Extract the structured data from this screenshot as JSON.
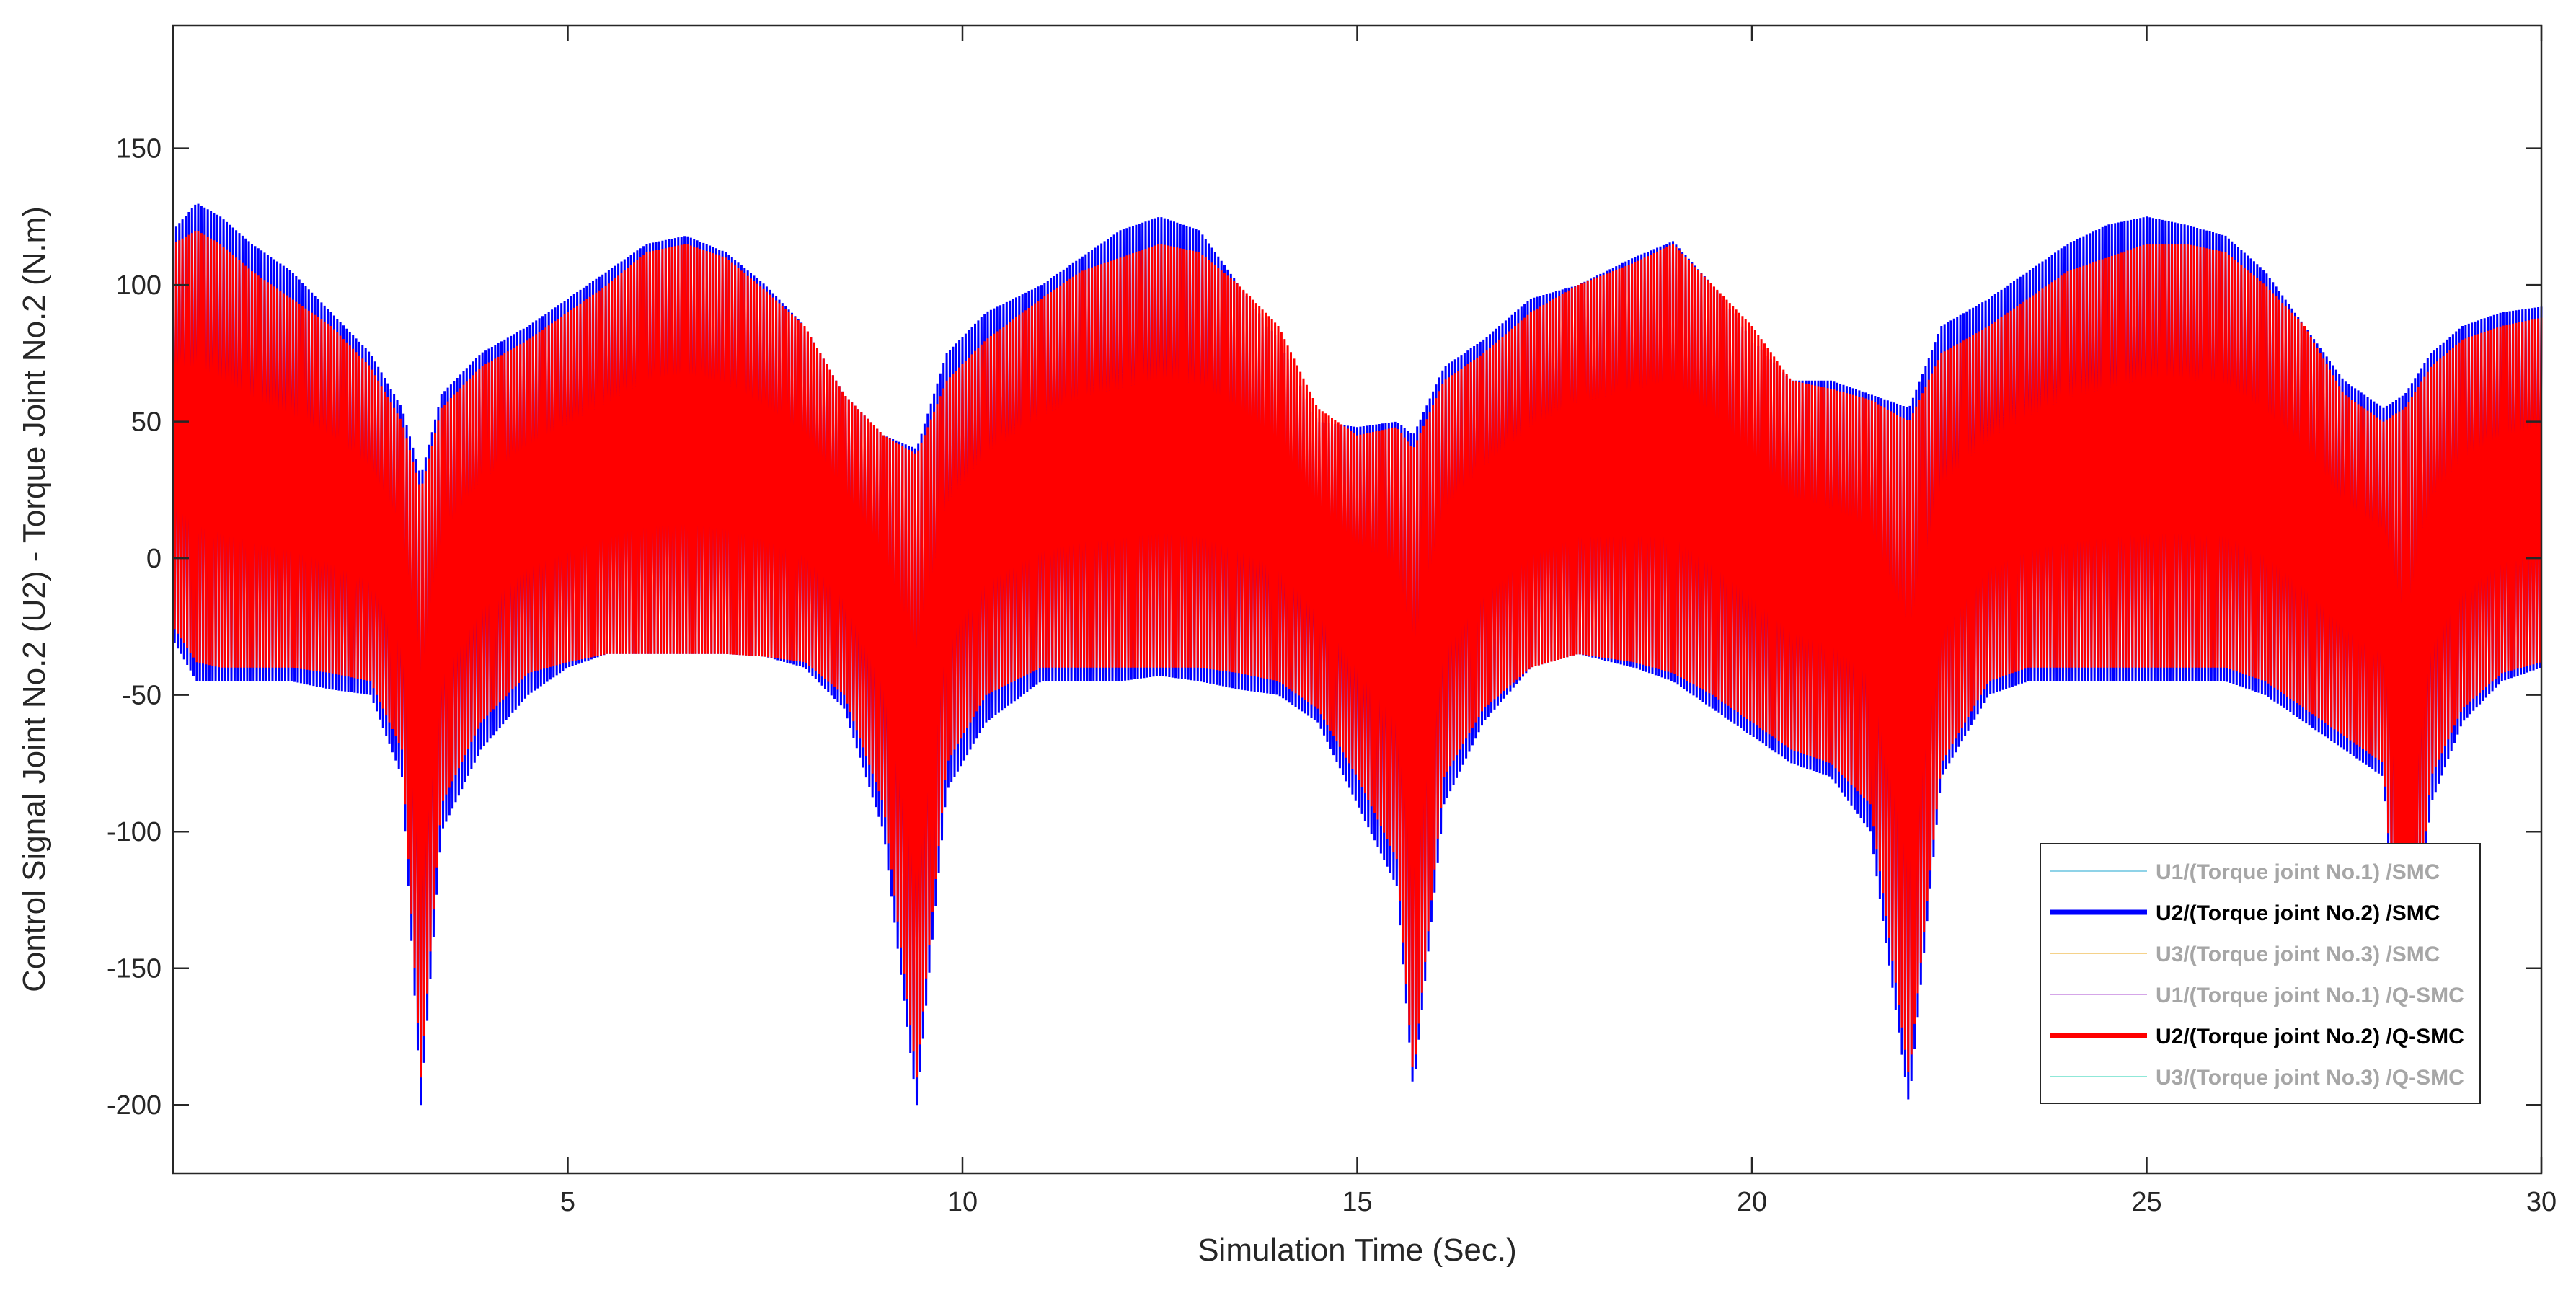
{
  "chart_data": {
    "type": "line",
    "title": "",
    "xlabel": "Simulation Time (Sec.)",
    "ylabel": "Control Signal Joint No.2 (U2) - Torque Joint No.2 (N.m)",
    "xlim": [
      0,
      30
    ],
    "ylim": [
      -225,
      195
    ],
    "xticks": [
      5,
      10,
      15,
      20,
      25,
      30
    ],
    "yticks": [
      150,
      100,
      50,
      0,
      -50,
      -100,
      -150,
      -200
    ],
    "grid": false,
    "legend_position": "bottom-right",
    "oscillation": "dense high-frequency switching between an upper and lower envelope",
    "series": [
      {
        "name": "U1/(Torque joint No.1) /SMC",
        "color": "#8fd3e8",
        "faded": true,
        "values": []
      },
      {
        "name": "U2/(Torque joint No.2) /SMC",
        "color": "#0000ff",
        "faded": false,
        "x": [
          0,
          0.3,
          0.6,
          1.0,
          1.5,
          2.0,
          2.5,
          2.9,
          3.14,
          3.4,
          3.9,
          4.5,
          5.0,
          5.5,
          6.0,
          6.5,
          7.0,
          7.5,
          8.0,
          8.5,
          9.0,
          9.42,
          9.8,
          10.3,
          11.0,
          11.5,
          12.0,
          12.5,
          13.0,
          13.5,
          14.0,
          14.5,
          15.0,
          15.5,
          15.71,
          16.1,
          16.6,
          17.2,
          17.8,
          18.5,
          19.0,
          19.5,
          20.0,
          20.5,
          21.0,
          21.5,
          21.99,
          22.4,
          23.0,
          23.5,
          24.0,
          24.5,
          25.0,
          25.5,
          26.0,
          26.5,
          27.0,
          27.5,
          28.0,
          28.27,
          28.6,
          29.0,
          29.5,
          30.0
        ],
        "upper": [
          120,
          130,
          125,
          115,
          105,
          90,
          75,
          55,
          30,
          60,
          75,
          85,
          95,
          105,
          115,
          118,
          112,
          100,
          85,
          60,
          45,
          40,
          75,
          90,
          100,
          110,
          120,
          125,
          120,
          100,
          80,
          50,
          48,
          50,
          45,
          70,
          80,
          95,
          100,
          110,
          116,
          100,
          80,
          65,
          65,
          60,
          55,
          85,
          95,
          105,
          115,
          122,
          125,
          122,
          118,
          105,
          85,
          65,
          55,
          60,
          75,
          85,
          90,
          92
        ],
        "lower": [
          -30,
          -45,
          -45,
          -45,
          -45,
          -48,
          -50,
          -80,
          -200,
          -100,
          -70,
          -50,
          -40,
          -35,
          -35,
          -35,
          -35,
          -36,
          -40,
          -55,
          -100,
          -200,
          -85,
          -60,
          -45,
          -45,
          -45,
          -43,
          -45,
          -48,
          -50,
          -60,
          -90,
          -120,
          -195,
          -90,
          -60,
          -40,
          -35,
          -40,
          -45,
          -55,
          -65,
          -75,
          -80,
          -100,
          -200,
          -80,
          -50,
          -45,
          -45,
          -45,
          -45,
          -45,
          -45,
          -50,
          -60,
          -70,
          -80,
          -200,
          -90,
          -60,
          -45,
          -40
        ]
      },
      {
        "name": "U3/(Torque joint No.3) /SMC",
        "color": "#f5d28a",
        "faded": true,
        "values": []
      },
      {
        "name": "U1/(Torque joint No.1) /Q-SMC",
        "color": "#d5a6e8",
        "faded": true,
        "values": []
      },
      {
        "name": "U2/(Torque joint No.2) /Q-SMC",
        "color": "#ff0000",
        "faded": false,
        "x": [
          0,
          0.3,
          0.6,
          1.0,
          1.5,
          2.0,
          2.5,
          2.9,
          3.14,
          3.4,
          3.9,
          4.5,
          5.0,
          5.5,
          6.0,
          6.5,
          7.0,
          7.5,
          8.0,
          8.5,
          9.0,
          9.42,
          9.8,
          10.3,
          11.0,
          11.5,
          12.0,
          12.5,
          13.0,
          13.5,
          14.0,
          14.5,
          15.0,
          15.5,
          15.71,
          16.1,
          16.6,
          17.2,
          17.8,
          18.5,
          19.0,
          19.5,
          20.0,
          20.5,
          21.0,
          21.5,
          21.99,
          22.4,
          23.0,
          23.5,
          24.0,
          24.5,
          25.0,
          25.5,
          26.0,
          26.5,
          27.0,
          27.5,
          28.0,
          28.27,
          28.6,
          29.0,
          29.5,
          30.0
        ],
        "upper": [
          115,
          120,
          115,
          105,
          95,
          85,
          70,
          50,
          25,
          55,
          70,
          80,
          90,
          100,
          112,
          115,
          110,
          98,
          85,
          60,
          45,
          38,
          65,
          80,
          95,
          105,
          110,
          115,
          112,
          100,
          85,
          55,
          45,
          48,
          40,
          65,
          75,
          90,
          100,
          108,
          115,
          100,
          85,
          65,
          62,
          58,
          50,
          75,
          85,
          95,
          105,
          110,
          115,
          115,
          112,
          100,
          85,
          60,
          50,
          55,
          70,
          80,
          85,
          88
        ],
        "lower": [
          -25,
          -38,
          -40,
          -40,
          -40,
          -42,
          -45,
          -70,
          -190,
          -90,
          -60,
          -42,
          -38,
          -35,
          -35,
          -35,
          -35,
          -36,
          -38,
          -50,
          -90,
          -190,
          -75,
          -50,
          -40,
          -40,
          -40,
          -40,
          -40,
          -42,
          -45,
          -55,
          -80,
          -110,
          -190,
          -80,
          -55,
          -40,
          -35,
          -38,
          -42,
          -50,
          -60,
          -70,
          -75,
          -90,
          -190,
          -75,
          -45,
          -40,
          -40,
          -40,
          -40,
          -40,
          -40,
          -45,
          -55,
          -65,
          -75,
          -190,
          -80,
          -55,
          -42,
          -38
        ]
      },
      {
        "name": "U3/(Torque joint No.3) /Q-SMC",
        "color": "#8fe8d8",
        "faded": true,
        "values": []
      }
    ]
  }
}
